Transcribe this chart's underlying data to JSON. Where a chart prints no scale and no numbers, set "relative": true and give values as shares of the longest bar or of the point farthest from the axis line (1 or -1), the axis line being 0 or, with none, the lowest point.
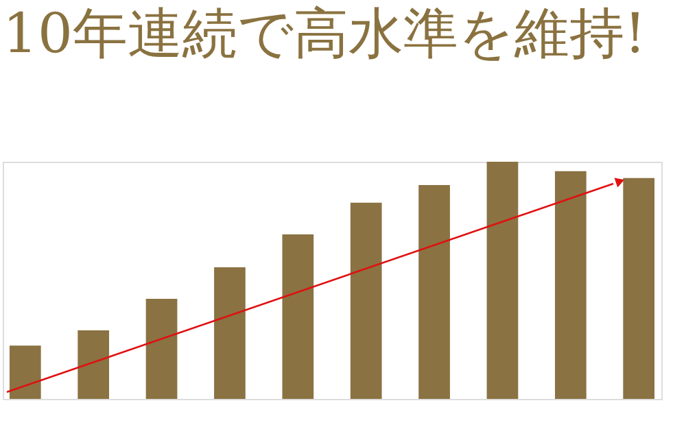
{
  "chart_data": {
    "type": "bar",
    "title": "10年連続で高水準を維持!",
    "relative": true,
    "categories": [
      null,
      null,
      null,
      null,
      null,
      null,
      null,
      null,
      null,
      null
    ],
    "series": [
      {
        "color": "#8a7242",
        "values": [
          0.225,
          0.289,
          0.422,
          0.555,
          0.694,
          0.827,
          0.902,
          1,
          0.96,
          0.931
        ]
      }
    ],
    "grid": false
  }
}
